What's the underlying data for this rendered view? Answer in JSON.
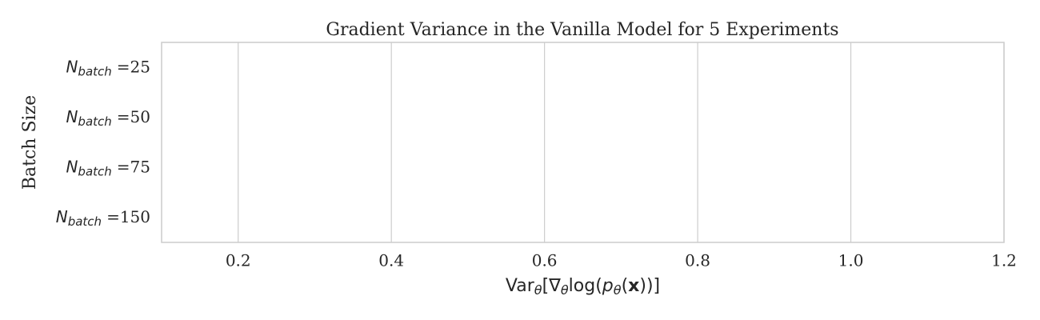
{
  "chart_data": {
    "type": "barh",
    "title": "Gradient Variance in the Vanilla Model for 5 Experiments",
    "ylabel": "Batch Size",
    "xlabel": [
      {
        "text": "Var"
      },
      {
        "text": "θ",
        "sub": true
      },
      {
        "text": "[∇"
      },
      {
        "text": "θ",
        "sub": true
      },
      {
        "text": "log("
      },
      {
        "text": "p",
        "italic": true
      },
      {
        "text": "θ",
        "sub": true
      },
      {
        "text": "("
      },
      {
        "text": "x",
        "bold": true
      },
      {
        "text": "))]"
      }
    ],
    "category_prefix": {
      "symbol": "N",
      "subscript": "batch"
    },
    "categories": [
      "=25",
      "=50",
      "=75",
      "=150"
    ],
    "values": [
      null,
      null,
      null,
      null
    ],
    "xlim": [
      0.1,
      1.2
    ],
    "xticks": [
      0.2,
      0.4,
      0.6,
      0.8,
      {
        "value": 1,
        "label": "1.0"
      },
      1.2
    ],
    "grid": true
  }
}
